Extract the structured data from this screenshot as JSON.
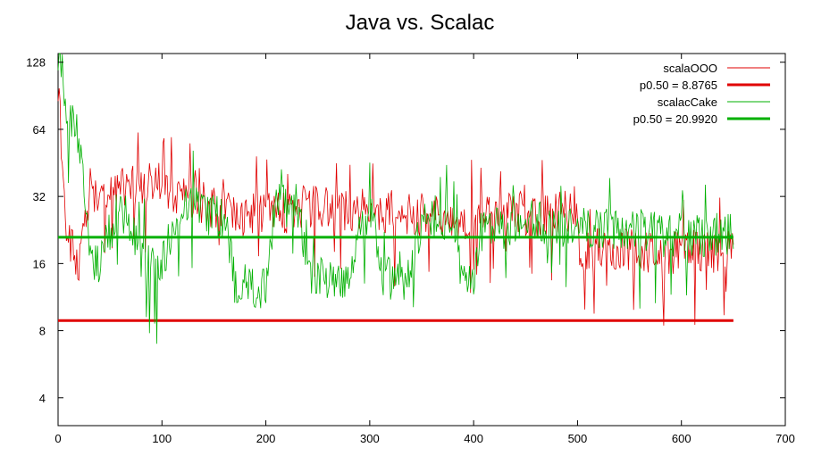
{
  "chart_data": {
    "type": "line",
    "title": "Java vs. Scalac",
    "xlabel": "",
    "ylabel": "",
    "xlim": [
      0,
      700
    ],
    "ylim": [
      3,
      140
    ],
    "y_scale": "log2",
    "grid": false,
    "legend_position": "top-right",
    "x_ticks": [
      0,
      100,
      200,
      300,
      400,
      500,
      600,
      700
    ],
    "y_ticks": [
      4,
      8,
      16,
      32,
      64,
      128
    ],
    "series": [
      {
        "name": "scalaOOO",
        "kind": "noisy",
        "color": "#e00000",
        "x": [
          0,
          3,
          6,
          10,
          15,
          20,
          30,
          40,
          60,
          80,
          100,
          120,
          140,
          160,
          180,
          200,
          220,
          240,
          260,
          280,
          300,
          320,
          340,
          360,
          380,
          400,
          420,
          440,
          460,
          480,
          499,
          502,
          520,
          540,
          560,
          580,
          600,
          620,
          640,
          650
        ],
        "values": [
          110,
          60,
          28,
          20,
          18,
          17,
          30,
          35,
          36,
          38,
          37,
          33,
          31,
          28,
          27,
          27,
          28,
          30,
          29,
          29,
          28,
          28,
          27,
          27,
          26,
          26,
          28,
          28,
          27,
          28,
          27,
          19,
          19,
          19,
          18.5,
          18.5,
          18.5,
          18.5,
          19,
          20
        ]
      },
      {
        "name": "p0.50 = 8.8765",
        "kind": "constant",
        "color": "#e00000",
        "x": [
          0,
          650
        ],
        "values": [
          8.8765,
          8.8765
        ]
      },
      {
        "name": "scalacCake",
        "kind": "noisy",
        "color": "#00b000",
        "x": [
          0,
          3,
          6,
          10,
          15,
          20,
          30,
          40,
          60,
          80,
          100,
          120,
          140,
          160,
          170,
          180,
          200,
          210,
          230,
          240,
          260,
          280,
          300,
          310,
          320,
          340,
          350,
          360,
          380,
          390,
          400,
          410,
          420,
          440,
          460,
          480,
          500,
          520,
          540,
          560,
          580,
          600,
          620,
          640,
          650
        ],
        "values": [
          150,
          130,
          90,
          75,
          70,
          60,
          17,
          16,
          30,
          17,
          16,
          30,
          28,
          26,
          13,
          13,
          13,
          30,
          30,
          14,
          14,
          14,
          30,
          14,
          14,
          14,
          25,
          27,
          25,
          13,
          13,
          23,
          24,
          24,
          25,
          24,
          24,
          23,
          23,
          23,
          22,
          22,
          22,
          22,
          22
        ]
      },
      {
        "name": "p0.50 = 20.9920",
        "kind": "constant",
        "color": "#00b000",
        "x": [
          0,
          650
        ],
        "values": [
          20.992,
          20.992
        ]
      }
    ]
  }
}
